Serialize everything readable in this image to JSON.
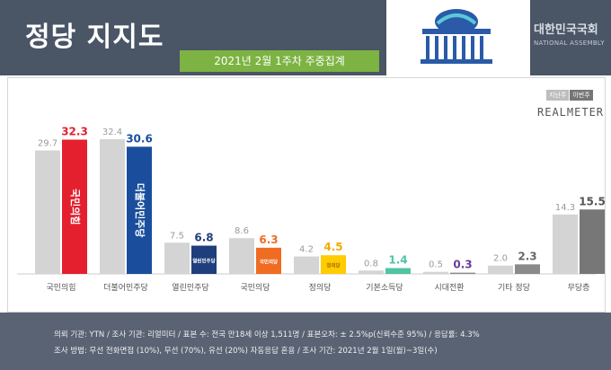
{
  "header": {
    "title": "정당 지지도",
    "subtitle": "2021년 2월 1주차 주중집계",
    "assembly_name": "대한민국국회",
    "assembly_sub": "NATIONAL ASSEMBLY"
  },
  "legend": {
    "prev": "지난주",
    "curr": "이번주"
  },
  "brand": "REALMETER",
  "chart_data": {
    "type": "bar",
    "categories": [
      "국민의힘",
      "더불어민주당",
      "열린민주당",
      "국민의당",
      "정의당",
      "기본소득당",
      "시대전환",
      "기타 정당",
      "무당층"
    ],
    "series": [
      {
        "name": "지난주",
        "values": [
          29.7,
          32.4,
          7.5,
          8.6,
          4.2,
          0.8,
          0.5,
          2.0,
          14.3
        ]
      },
      {
        "name": "이번주",
        "values": [
          32.3,
          30.6,
          6.8,
          6.3,
          4.5,
          1.4,
          0.3,
          2.3,
          15.5
        ]
      }
    ],
    "ylim": [
      0,
      35
    ],
    "colors": {
      "prev": "#d4d4d4",
      "current": [
        "#e4202e",
        "#1a4e9c",
        "#1e3f7c",
        "#ef6c22",
        "#ffcc00",
        "#50c4a4",
        "#8b8b8b",
        "#8a8a8a",
        "#777777"
      ],
      "current_label": [
        "#e4202e",
        "#1a4e9c",
        "#1e3f7c",
        "#ef6c22",
        "#f2a900",
        "#50c4a4",
        "#6a3a9a",
        "#666666",
        "#555555"
      ]
    },
    "bar_texts": [
      "국민의힘",
      "더불어민주당",
      "열린민주당",
      "국민의당",
      "정의당"
    ]
  },
  "footer": {
    "line1": "의뢰 기관: YTN / 조사 기관: 리얼미터 / 표본 수: 전국 만18세 이상 1,511명 / 표본오차: ± 2.5%p(신뢰수준 95%) / 응답률: 4.3%",
    "line2": "조사 방법: 무선 전화면접 (10%), 무선 (70%), 유선 (20%) 자동응답 혼용 / 조사 기간: 2021년 2월 1일(월)~3일(수)"
  }
}
